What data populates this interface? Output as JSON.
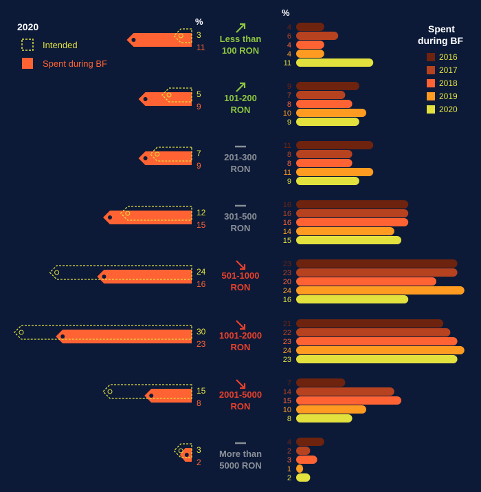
{
  "legend_left": {
    "title": "2020",
    "intended_label": "Intended",
    "spent_label": "Spent during BF"
  },
  "legend_right": {
    "title_line1": "Spent",
    "title_line2": "during BF",
    "years": [
      "2016",
      "2017",
      "2018",
      "2019",
      "2020"
    ]
  },
  "percent_symbol_left": "%",
  "percent_symbol_right": "%",
  "colors": {
    "background": "#0c1a38",
    "spent": "#ff6333",
    "intended_outline": "#e3e13e",
    "year_2016": "#6e230e",
    "year_2017": "#b7421f",
    "year_2018": "#ff6333",
    "year_2019": "#ff9b21",
    "year_2020": "#e3e13e",
    "trend_up": "#8ec63f",
    "trend_flat": "#8a8f96",
    "trend_down": "#e8402a"
  },
  "chart_data": [
    {
      "type": "bar",
      "orientation": "horizontal",
      "title": "2020",
      "categories": [
        "Less than 100 RON",
        "101-200 RON",
        "201-300 RON",
        "301-500 RON",
        "501-1000 RON",
        "1001-2000 RON",
        "2001-5000 RON",
        "More than 5000 RON"
      ],
      "series": [
        {
          "name": "Intended",
          "values": [
            3,
            5,
            7,
            12,
            24,
            30,
            15,
            3
          ]
        },
        {
          "name": "Spent during BF",
          "values": [
            11,
            9,
            9,
            15,
            16,
            23,
            8,
            2
          ]
        }
      ],
      "unit": "%"
    },
    {
      "type": "bar",
      "orientation": "horizontal",
      "title": "Spent during BF",
      "categories": [
        "Less than 100 RON",
        "101-200 RON",
        "201-300 RON",
        "301-500 RON",
        "501-1000 RON",
        "1001-2000 RON",
        "2001-5000 RON",
        "More than 5000 RON"
      ],
      "series": [
        {
          "name": "2016",
          "values": [
            4,
            9,
            11,
            16,
            23,
            21,
            7,
            4
          ]
        },
        {
          "name": "2017",
          "values": [
            6,
            7,
            8,
            16,
            23,
            22,
            14,
            2
          ]
        },
        {
          "name": "2018",
          "values": [
            4,
            8,
            8,
            16,
            20,
            23,
            15,
            3
          ]
        },
        {
          "name": "2019",
          "values": [
            4,
            10,
            11,
            14,
            24,
            24,
            10,
            1
          ]
        },
        {
          "name": "2020",
          "values": [
            11,
            9,
            9,
            15,
            16,
            23,
            8,
            2
          ]
        }
      ],
      "unit": "%"
    }
  ],
  "groups": [
    {
      "label_lines": [
        "Less than",
        "100 RON"
      ],
      "trend": "up"
    },
    {
      "label_lines": [
        "101-200",
        "RON"
      ],
      "trend": "up"
    },
    {
      "label_lines": [
        "201-300",
        "RON"
      ],
      "trend": "flat"
    },
    {
      "label_lines": [
        "301-500",
        "RON"
      ],
      "trend": "flat"
    },
    {
      "label_lines": [
        "501-1000",
        "RON"
      ],
      "trend": "down"
    },
    {
      "label_lines": [
        "1001-2000",
        "RON"
      ],
      "trend": "down"
    },
    {
      "label_lines": [
        "2001-5000",
        "RON"
      ],
      "trend": "down"
    },
    {
      "label_lines": [
        "More than",
        "5000 RON"
      ],
      "trend": "flat"
    }
  ]
}
